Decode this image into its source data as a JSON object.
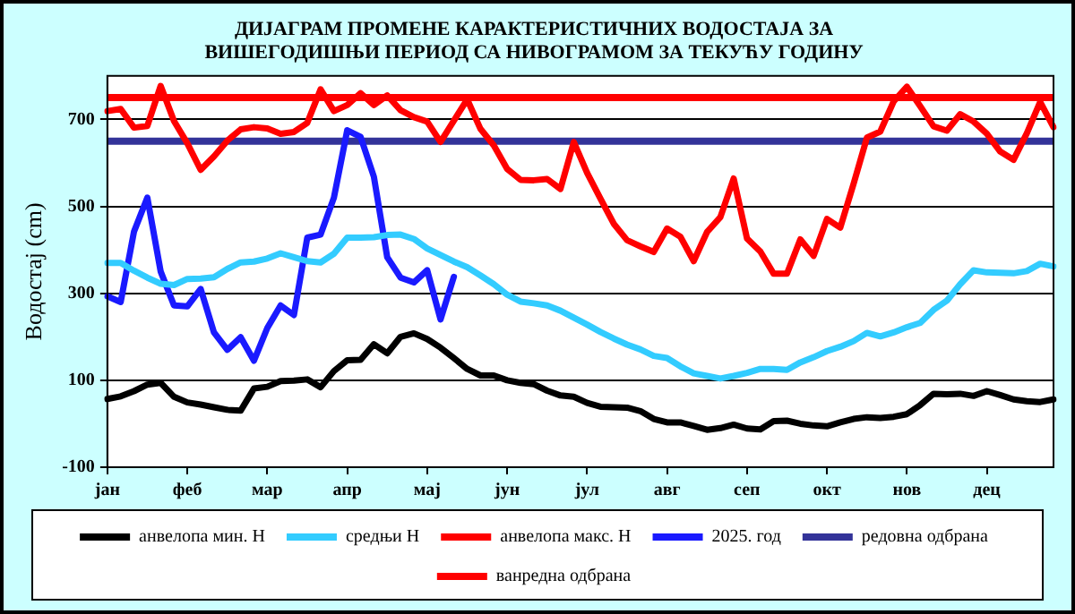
{
  "chart_data": {
    "type": "line",
    "title": "ДИЈАГРАМ ПРОМЕНЕ КАРАКТЕРИСТИЧНИХ ВОДОСТАЈА ЗА ВИШЕГОДИШЊИ ПЕРИОД СА НИВОГРАМОМ ЗА ТЕКУЋУ ГОДИНУ",
    "ylabel": "Водостај (cm)",
    "categories": [
      "јан",
      null,
      null,
      null,
      null,
      null,
      "феб",
      null,
      null,
      null,
      null,
      null,
      "мар",
      null,
      null,
      null,
      null,
      null,
      "апр",
      null,
      null,
      null,
      null,
      null,
      "мај",
      null,
      null,
      null,
      null,
      null,
      "јун",
      null,
      null,
      null,
      null,
      null,
      "јул",
      null,
      null,
      null,
      null,
      null,
      "авг",
      null,
      null,
      null,
      null,
      null,
      "сеп",
      null,
      null,
      null,
      null,
      null,
      "окт",
      null,
      null,
      null,
      null,
      null,
      "нов",
      null,
      null,
      null,
      null,
      null,
      "дец",
      null,
      null,
      null,
      null,
      null
    ],
    "ylim": [
      -100,
      800
    ],
    "yticks": [
      -100,
      100,
      300,
      500,
      700
    ],
    "grid": "y",
    "legend": "bottom",
    "marker": "none",
    "line_style": "solid",
    "series": [
      {
        "name": "анвелопа мин. Н",
        "color": "#000000",
        "values": [
          57,
          63,
          75,
          90,
          94,
          62,
          49,
          44,
          38,
          32,
          30,
          81,
          85,
          98,
          99,
          102,
          84,
          121,
          146,
          147,
          183,
          162,
          200,
          208,
          195,
          175,
          151,
          126,
          111,
          111,
          100,
          94,
          91,
          76,
          65,
          62,
          48,
          39,
          38,
          37,
          29,
          11,
          3,
          3,
          -5,
          -14,
          -10,
          -2,
          -11,
          -13,
          6,
          7,
          0,
          -4,
          -6,
          3,
          11,
          15,
          13,
          16,
          22,
          43,
          69,
          68,
          69,
          64,
          75,
          66,
          56,
          52,
          50,
          56
        ]
      },
      {
        "name": "средњи Н",
        "color": "#33ccff",
        "values": [
          370,
          370,
          352,
          336,
          322,
          319,
          333,
          334,
          337,
          356,
          371,
          373,
          380,
          392,
          383,
          374,
          371,
          391,
          428,
          428,
          429,
          434,
          435,
          425,
          403,
          388,
          373,
          360,
          341,
          321,
          297,
          281,
          277,
          272,
          260,
          244,
          228,
          211,
          196,
          182,
          171,
          156,
          151,
          132,
          116,
          110,
          104,
          110,
          117,
          126,
          126,
          124,
          141,
          153,
          167,
          177,
          190,
          209,
          201,
          210,
          222,
          232,
          262,
          283,
          321,
          353,
          348,
          347,
          346,
          351,
          368,
          362
        ]
      },
      {
        "name": "анвелопа макс. Н",
        "color": "#ff0000",
        "values": [
          719,
          724,
          681,
          685,
          777,
          696,
          645,
          584,
          615,
          651,
          677,
          682,
          679,
          667,
          671,
          692,
          769,
          719,
          733,
          760,
          733,
          755,
          721,
          705,
          695,
          648,
          697,
          746,
          678,
          640,
          586,
          561,
          560,
          563,
          540,
          648,
          577,
          518,
          460,
          422,
          408,
          395,
          449,
          430,
          374,
          441,
          475,
          564,
          426,
          396,
          345,
          345,
          424,
          386,
          471,
          451,
          552,
          658,
          672,
          741,
          775,
          730,
          684,
          674,
          712,
          695,
          667,
          626,
          607,
          668,
          740,
          682
        ]
      },
      {
        "name": "2025. год",
        "color": "#1a1aff",
        "values": [
          293,
          280,
          442,
          520,
          350,
          272,
          270,
          310,
          210,
          170,
          199,
          145,
          220,
          272,
          250,
          428,
          435,
          520,
          675,
          660,
          568,
          383,
          336,
          325,
          353,
          240,
          338,
          null,
          null,
          null,
          null,
          null,
          null,
          null,
          null,
          null,
          null,
          null,
          null,
          null,
          null,
          null,
          null,
          null,
          null,
          null,
          null,
          null,
          null,
          null,
          null,
          null,
          null,
          null,
          null,
          null,
          null,
          null,
          null,
          null,
          null,
          null,
          null,
          null,
          null,
          null,
          null,
          null,
          null,
          null,
          null,
          null
        ]
      }
    ],
    "ref_lines": [
      {
        "axis": "y",
        "value": 650,
        "label": "редовна одбрана",
        "color": "#333399"
      },
      {
        "axis": "y",
        "value": 750,
        "label": "ванредна одбрана",
        "color": "#ff0000"
      }
    ]
  }
}
